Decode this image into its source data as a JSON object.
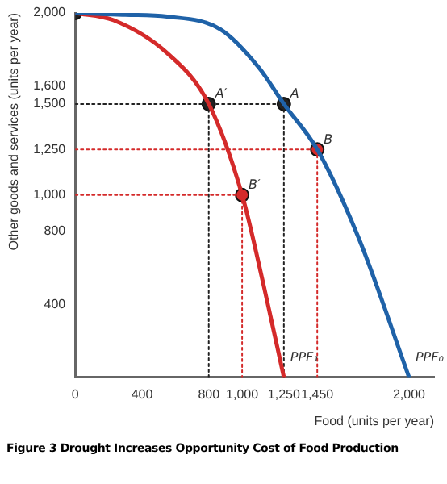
{
  "chart_data": {
    "type": "line",
    "xlabel": "Food (units per year)",
    "ylabel": "Other goods and services (units per year)",
    "xlim": [
      0,
      2150
    ],
    "ylim": [
      0,
      2000
    ],
    "xticks": [
      0,
      400,
      800,
      {
        "value": 1000,
        "label": "1,000"
      },
      {
        "value": 1250,
        "label": "1,250"
      },
      {
        "value": 1450,
        "label": "1,450"
      },
      {
        "value": 2000,
        "label": "2,000"
      }
    ],
    "yticks": [
      400,
      800,
      {
        "value": 1000,
        "label": "1,000"
      },
      {
        "value": 1250,
        "label": "1,250"
      },
      {
        "value": 1500,
        "label": "1,500"
      },
      {
        "value": 1600,
        "label": "1,600"
      },
      {
        "value": 2000,
        "label": "2,000"
      }
    ],
    "grid": false,
    "legend": false,
    "marker": "none",
    "line_style": "solid",
    "series": [
      {
        "color": "#1f62a8",
        "x": [
          0,
          300,
          550,
          870,
          1100,
          1250,
          1450,
          1700,
          2000
        ],
        "values": [
          2000,
          1990,
          1980,
          1910,
          1700,
          1500,
          1250,
          760,
          0
        ]
      },
      {
        "color": "#d42a2a",
        "x": [
          0,
          230,
          550,
          800,
          1000,
          1130,
          1250
        ],
        "values": [
          2000,
          1960,
          1780,
          1500,
          1000,
          500,
          0
        ]
      },
      {
        "color": "#222222",
        "line_style": "dotted",
        "x": [
          0,
          1250
        ],
        "values": [
          1500,
          1500
        ]
      },
      {
        "color": "#222222",
        "line_style": "dotted",
        "x": [
          800,
          800
        ],
        "values": [
          1500,
          0
        ]
      },
      {
        "color": "#222222",
        "line_style": "dotted",
        "x": [
          1250,
          1250
        ],
        "values": [
          1500,
          0
        ]
      },
      {
        "color": "#d42a2a",
        "line_style": "dotted",
        "x": [
          0,
          1450
        ],
        "values": [
          1250,
          1250
        ]
      },
      {
        "color": "#d42a2a",
        "line_style": "dotted",
        "x": [
          1450,
          1450
        ],
        "values": [
          1250,
          0
        ]
      },
      {
        "color": "#d42a2a",
        "line_style": "dotted",
        "x": [
          0,
          1000
        ],
        "values": [
          1000,
          1000
        ]
      },
      {
        "color": "#d42a2a",
        "line_style": "dotted",
        "x": [
          1000,
          1000
        ],
        "values": [
          1000,
          0
        ]
      },
      {
        "type": "scatter",
        "color": "#222222",
        "marker": "circle",
        "x": [
          0,
          800,
          1250
        ],
        "values": [
          2000,
          1500,
          1500
        ]
      },
      {
        "type": "scatter",
        "color": "#d42a2a",
        "marker": "circle",
        "x": [
          1450,
          1000
        ],
        "values": [
          1250,
          1000
        ]
      }
    ],
    "annotations": [
      {
        "text": "A′",
        "x": 800,
        "y": 1500
      },
      {
        "text": "A",
        "x": 1250,
        "y": 1500
      },
      {
        "text": "B",
        "x": 1450,
        "y": 1250
      },
      {
        "text": "B′",
        "x": 1000,
        "y": 1000
      },
      {
        "text": "PPF₁",
        "x": 1250,
        "y": 0
      },
      {
        "text": "PPF₀",
        "x": 2000,
        "y": 0
      },
      "Figure 3  Drought Increases Opportunity Cost of Food Production"
    ]
  }
}
